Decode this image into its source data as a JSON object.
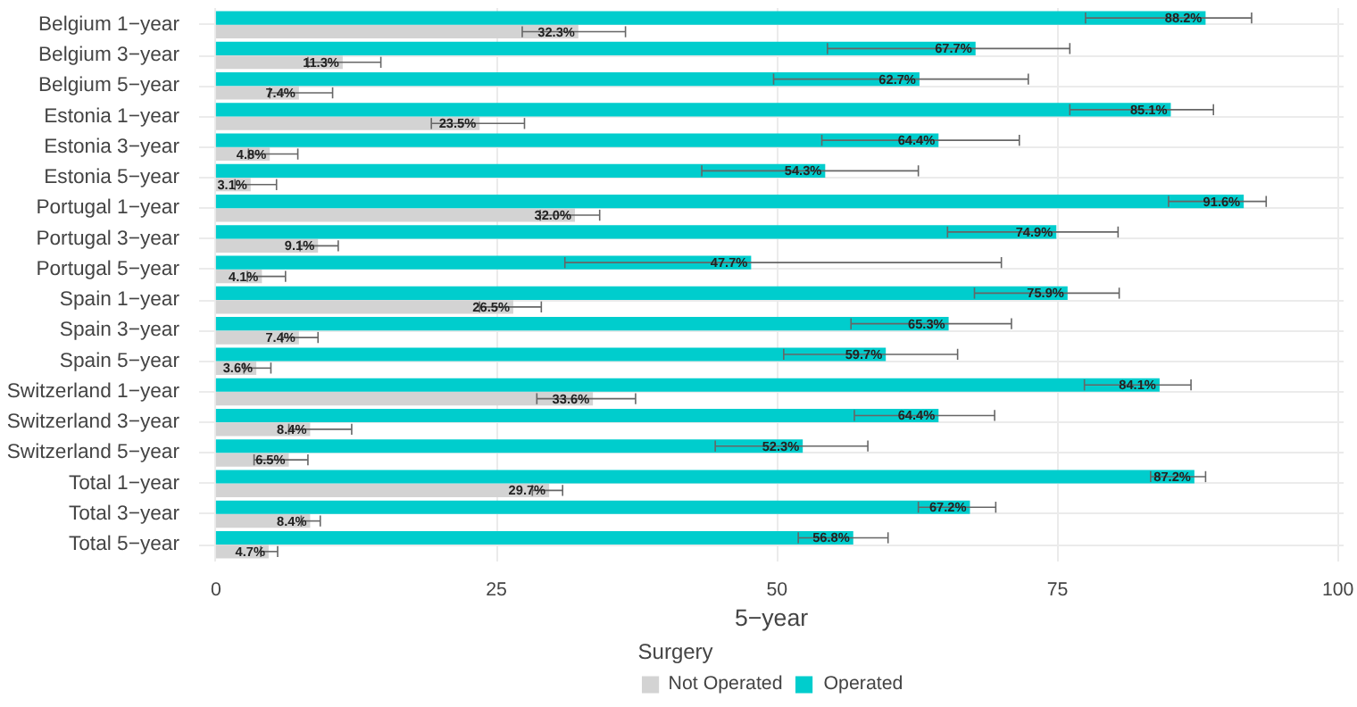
{
  "chart_data": {
    "type": "bar",
    "orientation": "horizontal",
    "xlabel": "5−year",
    "legend_title": "Surgery",
    "legend": "bottom",
    "grid": true,
    "xlim": [
      -1.5,
      100.5
    ],
    "xticks": [
      0,
      25,
      50,
      75,
      100
    ],
    "categories": [
      "Belgium 1−year",
      "Belgium 3−year",
      "Belgium 5−year",
      "Estonia 1−year",
      "Estonia 3−year",
      "Estonia 5−year",
      "Portugal 1−year",
      "Portugal 3−year",
      "Portugal 5−year",
      "Spain 1−year",
      "Spain 3−year",
      "Spain 5−year",
      "Switzerland 1−year",
      "Switzerland 3−year",
      "Switzerland 5−year",
      "Total 1−year",
      "Total 3−year",
      "Total 5−year"
    ],
    "series": [
      {
        "name": "Not Operated",
        "color": "#d3d3d3",
        "values": [
          32.3,
          11.3,
          7.4,
          23.5,
          4.8,
          3.1,
          32.0,
          9.1,
          4.1,
          26.5,
          7.4,
          3.6,
          33.6,
          8.4,
          6.5,
          29.7,
          8.4,
          4.7
        ],
        "value_labels": [
          "32.3%",
          "11.3%",
          "7.4%",
          "23.5%",
          "4.8%",
          "3.1%",
          "32.0%",
          "9.1%",
          "4.1%",
          "26.5%",
          "7.4%",
          "3.6%",
          "33.6%",
          "8.4%",
          "6.5%",
          "29.7%",
          "8.4%",
          "4.7%"
        ],
        "errors": [
          [
            27.3,
            36.5
          ],
          [
            8.2,
            14.7
          ],
          [
            4.8,
            10.4
          ],
          [
            19.2,
            27.5
          ],
          [
            2.9,
            7.3
          ],
          [
            1.7,
            5.4
          ],
          [
            28.9,
            34.2
          ],
          [
            7.5,
            10.9
          ],
          [
            2.8,
            6.2
          ],
          [
            23.5,
            29.0
          ],
          [
            5.9,
            9.1
          ],
          [
            2.5,
            4.9
          ],
          [
            28.6,
            37.4
          ],
          [
            6.5,
            12.1
          ],
          [
            3.4,
            8.2
          ],
          [
            28.2,
            30.9
          ],
          [
            7.6,
            9.3
          ],
          [
            4.0,
            5.5
          ]
        ]
      },
      {
        "name": "Operated",
        "color": "#00cdcd",
        "values": [
          88.2,
          67.7,
          62.7,
          85.1,
          64.4,
          54.3,
          91.6,
          74.9,
          47.7,
          75.9,
          65.3,
          59.7,
          84.1,
          64.4,
          52.3,
          87.2,
          67.2,
          56.8
        ],
        "value_labels": [
          "88.2%",
          "67.7%",
          "62.7%",
          "85.1%",
          "64.4%",
          "54.3%",
          "91.6%",
          "74.9%",
          "47.7%",
          "75.9%",
          "65.3%",
          "59.7%",
          "84.1%",
          "64.4%",
          "52.3%",
          "87.2%",
          "67.2%",
          "56.8%"
        ],
        "errors": [
          [
            77.5,
            92.3
          ],
          [
            54.5,
            76.1
          ],
          [
            49.7,
            72.4
          ],
          [
            76.1,
            88.9
          ],
          [
            54.0,
            71.6
          ],
          [
            43.3,
            62.6
          ],
          [
            84.9,
            93.6
          ],
          [
            65.2,
            80.4
          ],
          [
            31.1,
            70.0
          ],
          [
            67.6,
            80.5
          ],
          [
            56.6,
            70.9
          ],
          [
            50.6,
            66.1
          ],
          [
            77.4,
            86.9
          ],
          [
            56.9,
            69.4
          ],
          [
            44.5,
            58.1
          ],
          [
            83.3,
            88.2
          ],
          [
            62.6,
            69.5
          ],
          [
            51.9,
            59.9
          ]
        ]
      }
    ]
  }
}
